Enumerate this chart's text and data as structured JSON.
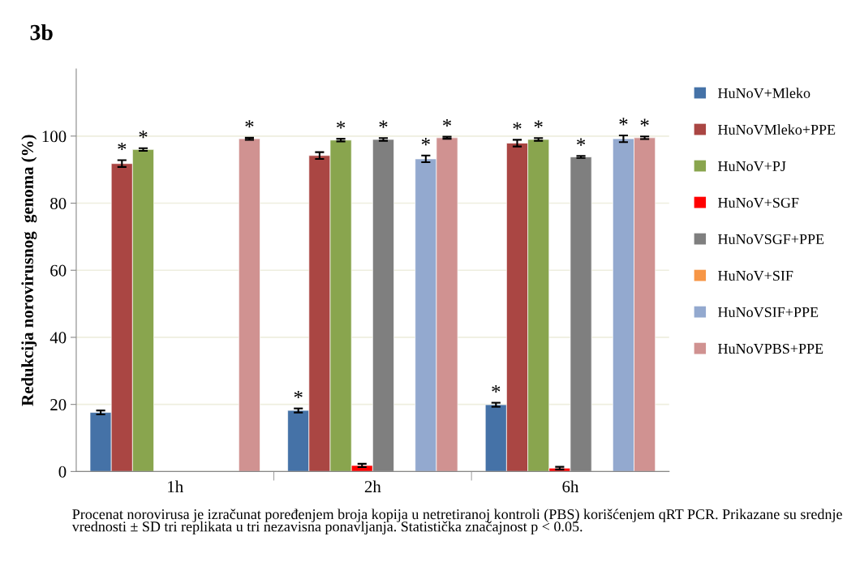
{
  "chart_data": {
    "type": "bar",
    "title": "3b",
    "ylabel": "Redukcija norovirusnog  genoma (%)",
    "categories": [
      "1h",
      "2h",
      "6h"
    ],
    "series": [
      {
        "name": "HuNoV+Mleko",
        "color": "#4572a7",
        "values": [
          17.6,
          18.2,
          19.9
        ],
        "errors": [
          0.6,
          0.6,
          0.6
        ],
        "value_labels": [
          null,
          "*",
          "*"
        ]
      },
      {
        "name": "HuNoVMleko+PPE",
        "color": "#aa4643",
        "values": [
          91.8,
          94.2,
          97.9
        ],
        "errors": [
          1,
          1,
          1
        ],
        "value_labels": [
          "*",
          null,
          "*"
        ]
      },
      {
        "name": "HuNoV+PJ",
        "color": "#89a54e",
        "values": [
          96.0,
          98.8,
          99.0
        ],
        "errors": [
          0.4,
          0.4,
          0.4
        ],
        "value_labels": [
          "*",
          "*",
          "*"
        ]
      },
      {
        "name": "HuNoV+SGF",
        "color": "#ff0000",
        "values": [
          null,
          1.8,
          1.0
        ],
        "errors": [
          null,
          0.5,
          0.4
        ],
        "value_labels": [
          null,
          null,
          null
        ]
      },
      {
        "name": "HuNoVSGF+PPE",
        "color": "#7f7f7f",
        "values": [
          null,
          99.0,
          93.8
        ],
        "errors": [
          null,
          0.4,
          0.3
        ],
        "value_labels": [
          null,
          "*",
          "*"
        ]
      },
      {
        "name": "HuNoV+SIF",
        "color": "#f79646",
        "values": [
          null,
          null,
          null
        ],
        "errors": [
          null,
          null,
          null
        ],
        "value_labels": [
          null,
          null,
          null
        ]
      },
      {
        "name": "HuNoVSIF+PPE",
        "color": "#93a9cf",
        "values": [
          null,
          93.2,
          99.2
        ],
        "errors": [
          null,
          1,
          1
        ],
        "value_labels": [
          null,
          "*",
          "*"
        ]
      },
      {
        "name": "HuNoVPBS+PPE",
        "color": "#d09291",
        "values": [
          99.2,
          99.5,
          99.5
        ],
        "errors": [
          0.3,
          0.3,
          0.4
        ],
        "value_labels": [
          "*",
          "*",
          "*"
        ]
      }
    ],
    "ylim": [
      0,
      120
    ],
    "yticks": [
      0,
      20,
      40,
      60,
      80,
      100
    ],
    "grid": "y",
    "legend": "right",
    "annotations": [
      "Procenat norovirusa je izračunat poređenjem broja kopija u netretiranoj kontroli (PBS) korišćenjem qRT PCR. Prikazane su srednje vrednosti ± SD tri replikata u tri nezavisna ponavljanja. Statistička značajnost p < 0.05."
    ]
  }
}
